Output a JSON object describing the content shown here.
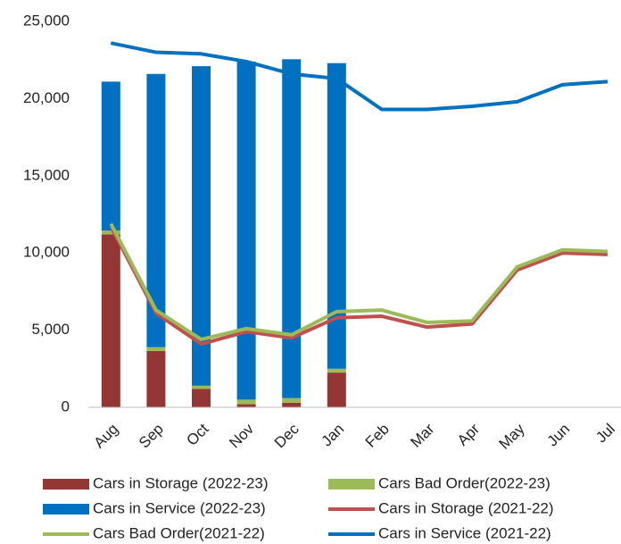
{
  "chart_data": {
    "type": "bar",
    "categories": [
      "Aug",
      "Sep",
      "Oct",
      "Nov",
      "Dec",
      "Jan",
      "Feb",
      "Mar",
      "Apr",
      "May",
      "Jun",
      "Jul"
    ],
    "series": [
      {
        "name": "Cars in Storage (2022-23)",
        "kind": "bar",
        "color": "#943634",
        "values": [
          11200,
          3650,
          1200,
          200,
          300,
          2250,
          null,
          null,
          null,
          null,
          null,
          null
        ]
      },
      {
        "name": "Cars Bad Order(2022-23)",
        "kind": "bar",
        "color": "#9bbb59",
        "values": [
          250,
          250,
          200,
          300,
          300,
          250,
          null,
          null,
          null,
          null,
          null,
          null
        ]
      },
      {
        "name": "Cars in Service (2022-23)",
        "kind": "bar",
        "color": "#0070c0",
        "values": [
          9650,
          17700,
          20700,
          21900,
          21950,
          19800,
          null,
          null,
          null,
          null,
          null,
          null
        ]
      },
      {
        "name": "Cars in Storage (2021-22)",
        "kind": "line",
        "color": "#c0504d",
        "values": [
          11700,
          6100,
          4100,
          4900,
          4500,
          5800,
          5900,
          5200,
          5400,
          8900,
          10000,
          9900
        ]
      },
      {
        "name": "Cars Bad Order(2021-22)",
        "kind": "line",
        "color": "#9bbb59",
        "values": [
          11900,
          6300,
          4400,
          5100,
          4700,
          6200,
          6300,
          5500,
          5600,
          9100,
          10200,
          10100
        ]
      },
      {
        "name": "Cars in Service (2021-22)",
        "kind": "line",
        "color": "#0070c0",
        "values": [
          23600,
          23000,
          22900,
          22400,
          21600,
          21300,
          19300,
          19300,
          19500,
          19800,
          20900,
          21100
        ]
      }
    ],
    "ylim": [
      0,
      25000
    ],
    "yticks": [
      0,
      {
        "value": 5000,
        "label": "5,000"
      },
      {
        "value": 10000,
        "label": "10,000"
      },
      {
        "value": 15000,
        "label": "15,000"
      },
      {
        "value": 20000,
        "label": "20,000"
      },
      {
        "value": 25000,
        "label": "25,000"
      }
    ],
    "grid": false
  }
}
